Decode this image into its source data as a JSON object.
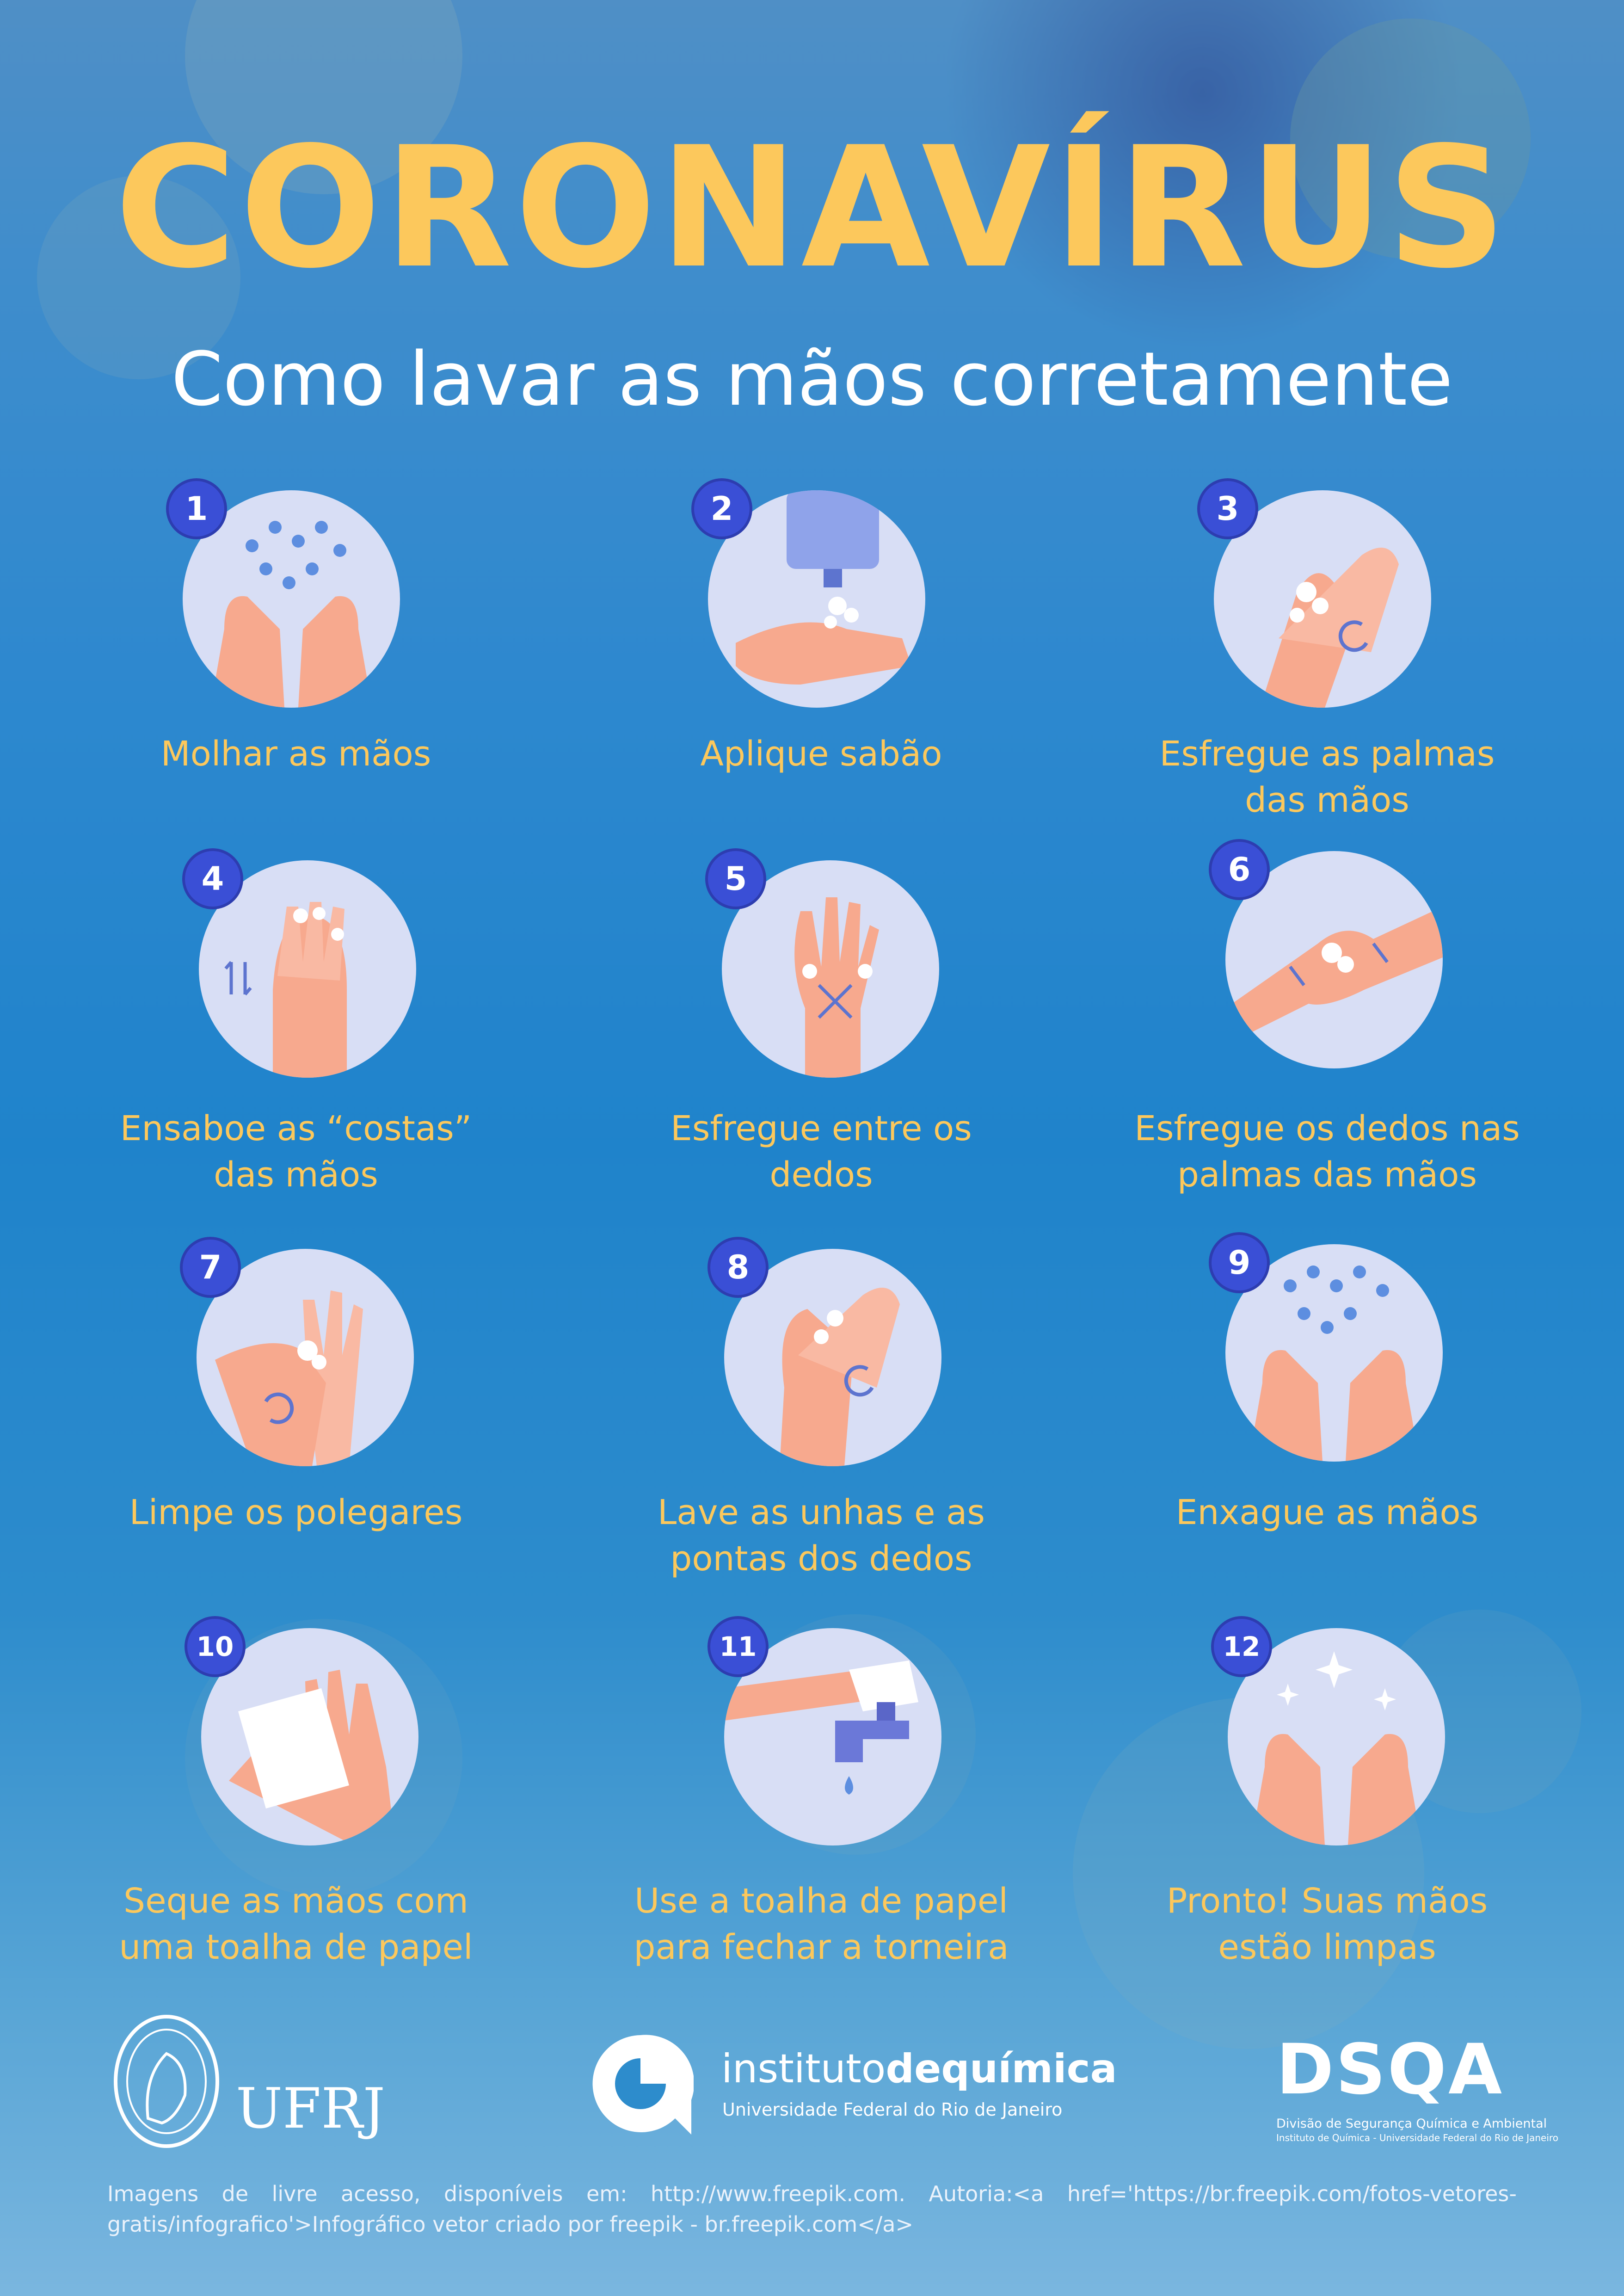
{
  "title": "CORONAVÍRUS",
  "subtitle": "Como lavar as mãos corretamente",
  "steps": [
    {
      "number": "1",
      "lines": [
        "Molhar as mãos"
      ],
      "icon": "wet-hands-icon"
    },
    {
      "number": "2",
      "lines": [
        "Aplique sabão"
      ],
      "icon": "soap-dispenser-icon"
    },
    {
      "number": "3",
      "lines": [
        "Esfregue as palmas",
        "das mãos"
      ],
      "icon": "rub-palms-icon"
    },
    {
      "number": "4",
      "lines": [
        "Ensaboe as “costas”",
        "das mãos"
      ],
      "icon": "back-of-hands-icon"
    },
    {
      "number": "5",
      "lines": [
        "Esfregue entre os",
        "dedos"
      ],
      "icon": "between-fingers-icon"
    },
    {
      "number": "6",
      "lines": [
        "Esfregue os dedos nas",
        "palmas das mãos"
      ],
      "icon": "fingers-on-palms-icon"
    },
    {
      "number": "7",
      "lines": [
        "Limpe os polegares"
      ],
      "icon": "thumbs-icon"
    },
    {
      "number": "8",
      "lines": [
        "Lave as unhas e as",
        "pontas dos dedos"
      ],
      "icon": "nails-icon"
    },
    {
      "number": "9",
      "lines": [
        "Enxague as mãos"
      ],
      "icon": "rinse-hands-icon"
    },
    {
      "number": "10",
      "lines": [
        "Seque as mãos com",
        "uma toalha de papel"
      ],
      "icon": "paper-towel-icon"
    },
    {
      "number": "11",
      "lines": [
        "Use a toalha de papel",
        "para fechar a torneira"
      ],
      "icon": "faucet-icon"
    },
    {
      "number": "12",
      "lines": [
        "Pronto! Suas mãos",
        "estão limpas"
      ],
      "icon": "clean-hands-icon"
    }
  ],
  "footer": {
    "ufrj": "UFRJ",
    "iq_name_light": "instituto",
    "iq_name_mid": "de",
    "iq_name_bold": "química",
    "iq_subtitle": "Universidade Federal do Rio de Janeiro",
    "dsqa_mark": "DSQA",
    "dsqa_line1": "Divisão de Segurança Química e Ambiental",
    "dsqa_line2": "Instituto de Química - Universidade Federal do Rio de Janeiro",
    "credit": "Imagens de livre acesso, disponíveis em: http://www.freepik.com. Autoria:<a href='https://br.freepik.com/fotos-vetores-gratis/infografico'>Infográfico vetor criado por freepik - br.freepik.com</a>"
  },
  "colors": {
    "accent_yellow": "#fcc85c",
    "badge_blue": "#3a4fd6",
    "circle_bg": "#d8def5",
    "skin": "#f7a98e"
  }
}
